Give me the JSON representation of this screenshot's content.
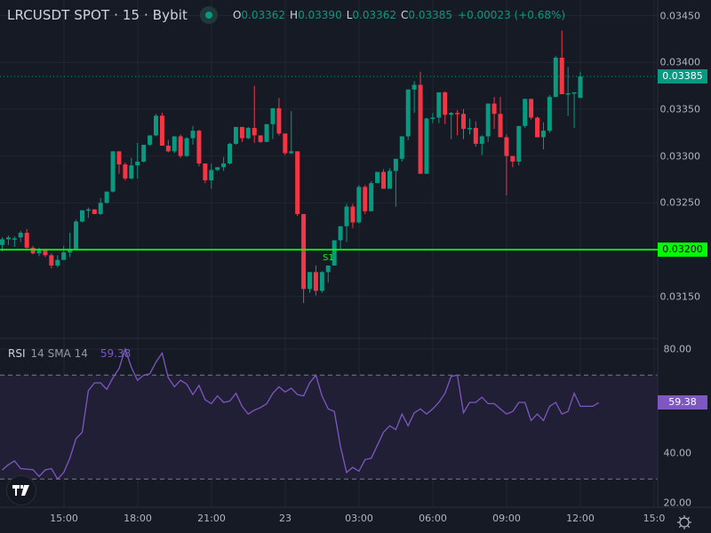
{
  "header": {
    "title": "LRCUSDT SPOT · 15 · Bybit",
    "status_color": "#089981",
    "ohlc": [
      {
        "key": "O",
        "value": "0.03362"
      },
      {
        "key": "H",
        "value": "0.03390"
      },
      {
        "key": "L",
        "value": "0.03362"
      },
      {
        "key": "C",
        "value": "0.03385"
      }
    ],
    "change": "+0.00023 (+0.68%)"
  },
  "price_axis": {
    "ticks": [
      "0.03450",
      "0.03400",
      "0.03350",
      "0.03300",
      "0.03250",
      "0.03200",
      "0.03150"
    ],
    "last_price_tag": "0.03385",
    "support_tag": "0.03200"
  },
  "support_line": {
    "label": "S1",
    "price": 0.032,
    "color": "#00ff00"
  },
  "rsi": {
    "name": "RSI",
    "params": "14 SMA 14",
    "value": "59.38",
    "color": "#7e57c2",
    "axis_ticks": [
      "80.00",
      "40.00",
      "20.00"
    ],
    "upper_band": 70,
    "lower_band": 30
  },
  "time_axis": {
    "ticks": [
      "15:00",
      "18:00",
      "21:00",
      "23",
      "03:00",
      "06:00",
      "09:00",
      "12:00",
      "15:0"
    ]
  },
  "colors": {
    "background": "#161a25",
    "up": "#089981",
    "down": "#f23645",
    "grid": "#232632",
    "rsi_band_fill": "#211f35"
  },
  "icons": {
    "logo": "tradingview-logo",
    "settings": "gear-icon"
  },
  "chart_data": [
    {
      "type": "candlestick",
      "title": "LRCUSDT SPOT · 15 · Bybit",
      "interval": "15m",
      "ylim": [
        0.0312,
        0.0347
      ],
      "x_tick_labels": [
        "15:00",
        "18:00",
        "21:00",
        "23",
        "03:00",
        "06:00",
        "09:00",
        "12:00",
        "15:0"
      ],
      "y_tick_labels": [
        "0.03150",
        "0.03200",
        "0.03250",
        "0.03300",
        "0.03350",
        "0.03400",
        "0.03450"
      ],
      "annotations": [
        {
          "type": "hline",
          "price": 0.032,
          "label": "S1",
          "color": "#00ff00"
        }
      ],
      "last_price": 0.03385,
      "candles": [
        {
          "o": 0.03205,
          "h": 0.03213,
          "l": 0.03198,
          "c": 0.03211
        },
        {
          "o": 0.03211,
          "h": 0.03215,
          "l": 0.03205,
          "c": 0.03213
        },
        {
          "o": 0.03212,
          "h": 0.03214,
          "l": 0.03203,
          "c": 0.03212
        },
        {
          "o": 0.03213,
          "h": 0.0322,
          "l": 0.03208,
          "c": 0.03218
        },
        {
          "o": 0.03218,
          "h": 0.03222,
          "l": 0.03199,
          "c": 0.03202
        },
        {
          "o": 0.03202,
          "h": 0.03204,
          "l": 0.03195,
          "c": 0.03196
        },
        {
          "o": 0.03196,
          "h": 0.03202,
          "l": 0.03193,
          "c": 0.032
        },
        {
          "o": 0.032,
          "h": 0.032,
          "l": 0.03192,
          "c": 0.03194
        },
        {
          "o": 0.03194,
          "h": 0.03196,
          "l": 0.0318,
          "c": 0.03183
        },
        {
          "o": 0.03183,
          "h": 0.03194,
          "l": 0.03181,
          "c": 0.03189
        },
        {
          "o": 0.03189,
          "h": 0.03204,
          "l": 0.03189,
          "c": 0.03197
        },
        {
          "o": 0.03197,
          "h": 0.03218,
          "l": 0.03192,
          "c": 0.03201
        },
        {
          "o": 0.03201,
          "h": 0.03232,
          "l": 0.032,
          "c": 0.0323
        },
        {
          "o": 0.0323,
          "h": 0.0324,
          "l": 0.03229,
          "c": 0.03242
        },
        {
          "o": 0.03242,
          "h": 0.03245,
          "l": 0.03234,
          "c": 0.03243
        },
        {
          "o": 0.03243,
          "h": 0.03243,
          "l": 0.03238,
          "c": 0.03238
        },
        {
          "o": 0.03238,
          "h": 0.03255,
          "l": 0.03237,
          "c": 0.0325
        },
        {
          "o": 0.0325,
          "h": 0.03261,
          "l": 0.03249,
          "c": 0.03262
        },
        {
          "o": 0.03262,
          "h": 0.03305,
          "l": 0.03261,
          "c": 0.03305
        },
        {
          "o": 0.03305,
          "h": 0.03305,
          "l": 0.03281,
          "c": 0.03291
        },
        {
          "o": 0.03291,
          "h": 0.03293,
          "l": 0.03274,
          "c": 0.03276
        },
        {
          "o": 0.03276,
          "h": 0.03298,
          "l": 0.03275,
          "c": 0.0329
        },
        {
          "o": 0.0329,
          "h": 0.03314,
          "l": 0.03276,
          "c": 0.03294
        },
        {
          "o": 0.03294,
          "h": 0.03312,
          "l": 0.03293,
          "c": 0.03312
        },
        {
          "o": 0.03312,
          "h": 0.0332,
          "l": 0.03311,
          "c": 0.03322
        },
        {
          "o": 0.03322,
          "h": 0.03345,
          "l": 0.03321,
          "c": 0.03343
        },
        {
          "o": 0.03343,
          "h": 0.03346,
          "l": 0.03311,
          "c": 0.03311
        },
        {
          "o": 0.03311,
          "h": 0.03317,
          "l": 0.03304,
          "c": 0.03305
        },
        {
          "o": 0.03305,
          "h": 0.0332,
          "l": 0.03303,
          "c": 0.03321
        },
        {
          "o": 0.03321,
          "h": 0.03323,
          "l": 0.03298,
          "c": 0.033
        },
        {
          "o": 0.033,
          "h": 0.0332,
          "l": 0.03299,
          "c": 0.03319
        },
        {
          "o": 0.03319,
          "h": 0.03332,
          "l": 0.03312,
          "c": 0.03327
        },
        {
          "o": 0.03327,
          "h": 0.03328,
          "l": 0.03289,
          "c": 0.03292
        },
        {
          "o": 0.03292,
          "h": 0.03292,
          "l": 0.03271,
          "c": 0.03274
        },
        {
          "o": 0.03274,
          "h": 0.03292,
          "l": 0.03265,
          "c": 0.03285
        },
        {
          "o": 0.03285,
          "h": 0.03288,
          "l": 0.03284,
          "c": 0.03288
        },
        {
          "o": 0.03288,
          "h": 0.03299,
          "l": 0.03284,
          "c": 0.03292
        },
        {
          "o": 0.03292,
          "h": 0.03314,
          "l": 0.03291,
          "c": 0.03313
        },
        {
          "o": 0.03313,
          "h": 0.03329,
          "l": 0.03312,
          "c": 0.03331
        },
        {
          "o": 0.03331,
          "h": 0.03331,
          "l": 0.03315,
          "c": 0.03319
        },
        {
          "o": 0.03319,
          "h": 0.03331,
          "l": 0.03318,
          "c": 0.0333
        },
        {
          "o": 0.0333,
          "h": 0.03375,
          "l": 0.03314,
          "c": 0.03322
        },
        {
          "o": 0.03322,
          "h": 0.03322,
          "l": 0.03314,
          "c": 0.03315
        },
        {
          "o": 0.03315,
          "h": 0.03332,
          "l": 0.03315,
          "c": 0.03334
        },
        {
          "o": 0.03334,
          "h": 0.03335,
          "l": 0.03318,
          "c": 0.03351
        },
        {
          "o": 0.03351,
          "h": 0.03362,
          "l": 0.03322,
          "c": 0.03324
        },
        {
          "o": 0.03324,
          "h": 0.0332,
          "l": 0.03301,
          "c": 0.03303
        },
        {
          "o": 0.03303,
          "h": 0.03348,
          "l": 0.03302,
          "c": 0.03305
        },
        {
          "o": 0.03305,
          "h": 0.03305,
          "l": 0.03236,
          "c": 0.03238
        },
        {
          "o": 0.03238,
          "h": 0.03238,
          "l": 0.03143,
          "c": 0.03158
        },
        {
          "o": 0.03158,
          "h": 0.03176,
          "l": 0.03154,
          "c": 0.03176
        },
        {
          "o": 0.03176,
          "h": 0.03183,
          "l": 0.03151,
          "c": 0.03156
        },
        {
          "o": 0.03156,
          "h": 0.03177,
          "l": 0.03154,
          "c": 0.03176
        },
        {
          "o": 0.03176,
          "h": 0.03183,
          "l": 0.03165,
          "c": 0.03183
        },
        {
          "o": 0.03183,
          "h": 0.0321,
          "l": 0.03183,
          "c": 0.0321
        },
        {
          "o": 0.0321,
          "h": 0.03225,
          "l": 0.03199,
          "c": 0.03225
        },
        {
          "o": 0.03225,
          "h": 0.03249,
          "l": 0.03208,
          "c": 0.03246
        },
        {
          "o": 0.03246,
          "h": 0.03249,
          "l": 0.03223,
          "c": 0.03229
        },
        {
          "o": 0.03229,
          "h": 0.03269,
          "l": 0.03228,
          "c": 0.03267
        },
        {
          "o": 0.03267,
          "h": 0.03269,
          "l": 0.03238,
          "c": 0.03241
        },
        {
          "o": 0.03241,
          "h": 0.03273,
          "l": 0.03241,
          "c": 0.03271
        },
        {
          "o": 0.03271,
          "h": 0.03283,
          "l": 0.03273,
          "c": 0.03283
        },
        {
          "o": 0.03283,
          "h": 0.03286,
          "l": 0.03266,
          "c": 0.03265
        },
        {
          "o": 0.03265,
          "h": 0.03287,
          "l": 0.03265,
          "c": 0.03284
        },
        {
          "o": 0.03284,
          "h": 0.03292,
          "l": 0.03246,
          "c": 0.03297
        },
        {
          "o": 0.03297,
          "h": 0.03321,
          "l": 0.03294,
          "c": 0.03321
        },
        {
          "o": 0.03321,
          "h": 0.03371,
          "l": 0.03317,
          "c": 0.03371
        },
        {
          "o": 0.03371,
          "h": 0.0338,
          "l": 0.03346,
          "c": 0.03376
        },
        {
          "o": 0.03376,
          "h": 0.0339,
          "l": 0.03285,
          "c": 0.03281
        },
        {
          "o": 0.03281,
          "h": 0.03341,
          "l": 0.03281,
          "c": 0.0334
        },
        {
          "o": 0.0334,
          "h": 0.03346,
          "l": 0.03335,
          "c": 0.03341
        },
        {
          "o": 0.03341,
          "h": 0.03367,
          "l": 0.03335,
          "c": 0.03368
        },
        {
          "o": 0.03368,
          "h": 0.03369,
          "l": 0.03334,
          "c": 0.03344
        },
        {
          "o": 0.03344,
          "h": 0.03347,
          "l": 0.03318,
          "c": 0.03346
        },
        {
          "o": 0.03346,
          "h": 0.03349,
          "l": 0.03322,
          "c": 0.03345
        },
        {
          "o": 0.03345,
          "h": 0.0335,
          "l": 0.03318,
          "c": 0.03329
        },
        {
          "o": 0.03329,
          "h": 0.0334,
          "l": 0.03323,
          "c": 0.0333
        },
        {
          "o": 0.0333,
          "h": 0.03337,
          "l": 0.0331,
          "c": 0.03313
        },
        {
          "o": 0.03313,
          "h": 0.03322,
          "l": 0.03301,
          "c": 0.03321
        },
        {
          "o": 0.03321,
          "h": 0.03356,
          "l": 0.03315,
          "c": 0.03356
        },
        {
          "o": 0.03356,
          "h": 0.03363,
          "l": 0.03329,
          "c": 0.03345
        },
        {
          "o": 0.03345,
          "h": 0.03363,
          "l": 0.0332,
          "c": 0.0332
        },
        {
          "o": 0.0332,
          "h": 0.03323,
          "l": 0.03258,
          "c": 0.033
        },
        {
          "o": 0.033,
          "h": 0.03296,
          "l": 0.03288,
          "c": 0.03294
        },
        {
          "o": 0.03294,
          "h": 0.03309,
          "l": 0.0329,
          "c": 0.03332
        },
        {
          "o": 0.03332,
          "h": 0.03361,
          "l": 0.0333,
          "c": 0.03361
        },
        {
          "o": 0.03361,
          "h": 0.03361,
          "l": 0.03339,
          "c": 0.03341
        },
        {
          "o": 0.03341,
          "h": 0.03342,
          "l": 0.0332,
          "c": 0.0332
        },
        {
          "o": 0.0332,
          "h": 0.03336,
          "l": 0.03307,
          "c": 0.03327
        },
        {
          "o": 0.03327,
          "h": 0.03365,
          "l": 0.03325,
          "c": 0.03363
        },
        {
          "o": 0.03363,
          "h": 0.03407,
          "l": 0.03363,
          "c": 0.03405
        },
        {
          "o": 0.03405,
          "h": 0.03434,
          "l": 0.03368,
          "c": 0.03366
        },
        {
          "o": 0.03366,
          "h": 0.03395,
          "l": 0.03343,
          "c": 0.03367
        },
        {
          "o": 0.03367,
          "h": 0.03368,
          "l": 0.0333,
          "c": 0.03368
        },
        {
          "o": 0.03362,
          "h": 0.0339,
          "l": 0.03362,
          "c": 0.03385
        }
      ]
    },
    {
      "type": "line",
      "title": "RSI 14 SMA 14",
      "ylim": [
        18,
        85
      ],
      "y_tick_labels": [
        "20.00",
        "40.00",
        "80.00"
      ],
      "bands": {
        "upper": 70,
        "lower": 30
      },
      "last_value": 59.38,
      "values": [
        33.5,
        35.5,
        37.0,
        34.0,
        33.8,
        33.6,
        31.0,
        33.5,
        34.0,
        30.0,
        32.5,
        38.0,
        45.5,
        48.0,
        64.0,
        67.0,
        67.0,
        64.5,
        69.0,
        72.5,
        80.0,
        73.0,
        68.0,
        70.0,
        70.5,
        75.0,
        78.5,
        69.0,
        65.5,
        68.0,
        66.5,
        62.5,
        66.0,
        60.5,
        59.0,
        62.0,
        59.5,
        60.0,
        63.0,
        58.0,
        55.0,
        56.5,
        57.5,
        59.0,
        63.0,
        65.5,
        63.5,
        65.0,
        62.5,
        62.0,
        67.0,
        70.0,
        62.0,
        57.0,
        56.0,
        42.5,
        32.5,
        34.5,
        33.0,
        37.5,
        38.0,
        43.0,
        48.0,
        50.5,
        49.0,
        55.0,
        50.5,
        55.5,
        57.0,
        55.0,
        57.0,
        59.5,
        63.0,
        69.5,
        70.0,
        55.5,
        59.5,
        59.5,
        61.5,
        59.0,
        59.0,
        57.0,
        55.0,
        56.0,
        59.5,
        59.5,
        52.5,
        55.0,
        52.5,
        58.0,
        59.5,
        55.0,
        56.0,
        63.0,
        58.0,
        58.0,
        58.0,
        59.38
      ]
    }
  ]
}
